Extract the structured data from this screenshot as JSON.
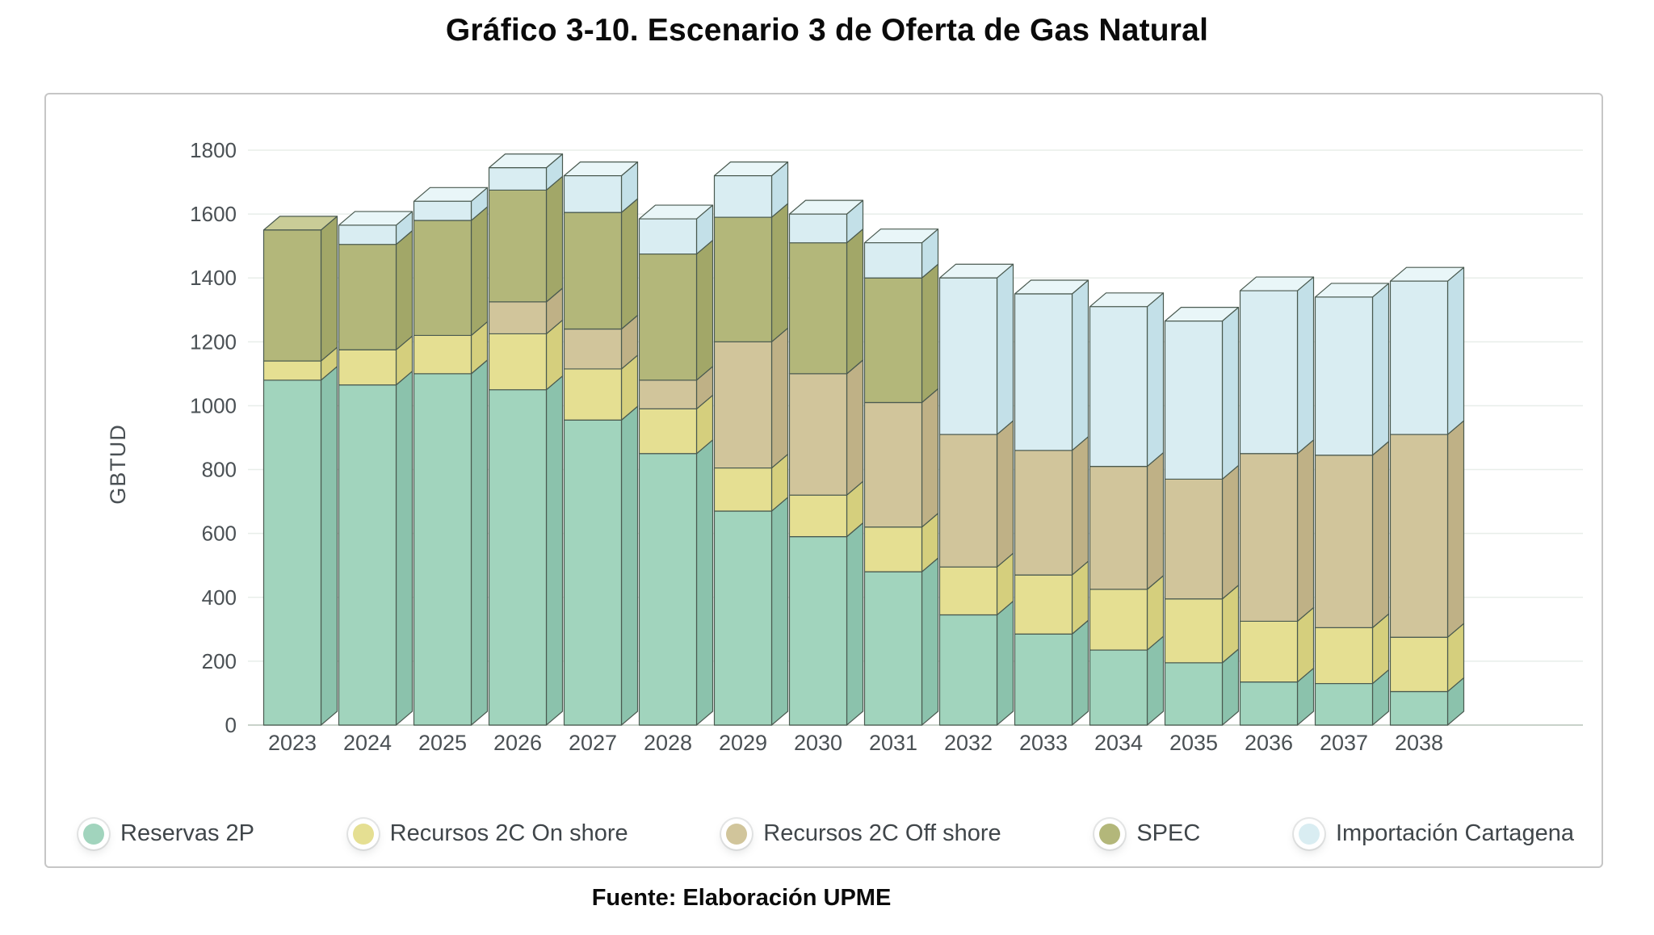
{
  "title": "Gráfico 3-10. Escenario 3 de Oferta de Gas Natural",
  "source": "Fuente: Elaboración UPME",
  "chart_data": {
    "type": "bar",
    "stacked": true,
    "style": "pseudo-3d",
    "title": "Gráfico 3-10. Escenario 3 de Oferta de Gas Natural",
    "xlabel": "",
    "ylabel": "GBTUD",
    "ylim": [
      0,
      1800
    ],
    "yticks": [
      0,
      200,
      400,
      600,
      800,
      1000,
      1200,
      1400,
      1600,
      1800
    ],
    "grid": true,
    "legend_position": "bottom",
    "categories": [
      "2023",
      "2024",
      "2025",
      "2026",
      "2027",
      "2028",
      "2029",
      "2030",
      "2031",
      "2032",
      "2033",
      "2034",
      "2035",
      "2036",
      "2037",
      "2038"
    ],
    "series": [
      {
        "name": "Reservas 2P",
        "color": "#a1d4bd",
        "color_top": "#c6e6d8",
        "color_side": "#8bc2ac",
        "values": [
          1080,
          1065,
          1100,
          1050,
          955,
          850,
          670,
          590,
          480,
          345,
          285,
          235,
          195,
          135,
          130,
          105
        ]
      },
      {
        "name": "Recursos 2C On shore",
        "color": "#e5df92",
        "color_top": "#f0ecb9",
        "color_side": "#d5cf7d",
        "values": [
          60,
          110,
          120,
          175,
          160,
          140,
          135,
          130,
          140,
          150,
          185,
          190,
          200,
          190,
          175,
          170
        ]
      },
      {
        "name": "Recursos 2C Off shore",
        "color": "#d1c59b",
        "color_top": "#e0d7b9",
        "color_side": "#bfb186",
        "values": [
          0,
          0,
          0,
          100,
          125,
          90,
          395,
          380,
          390,
          415,
          390,
          385,
          375,
          525,
          540,
          635
        ]
      },
      {
        "name": "SPEC",
        "color": "#b3b77a",
        "color_top": "#c9cc97",
        "color_side": "#a2a768",
        "values": [
          410,
          330,
          360,
          350,
          365,
          395,
          390,
          410,
          390,
          0,
          0,
          0,
          0,
          0,
          0,
          0
        ]
      },
      {
        "name": "Importación Cartagena",
        "color": "#d9edf2",
        "color_top": "#e9f6f8",
        "color_side": "#c3e0e8",
        "values": [
          0,
          60,
          60,
          70,
          115,
          110,
          130,
          90,
          110,
          490,
          490,
          500,
          495,
          510,
          495,
          480
        ]
      }
    ],
    "totals": [
      1550,
      1565,
      1640,
      1745,
      1720,
      1585,
      1720,
      1600,
      1510,
      1400,
      1350,
      1310,
      1265,
      1360,
      1340,
      1390
    ]
  },
  "colors": {
    "edge_stroke": "#4a5a50",
    "gridline": "#e8eee9",
    "baseline": "#c9d2ca",
    "axis_text": "#4a5054",
    "legend_text": "#40464a",
    "panel_border": "#c6c6c6",
    "title_text": "#0b0b0b"
  }
}
